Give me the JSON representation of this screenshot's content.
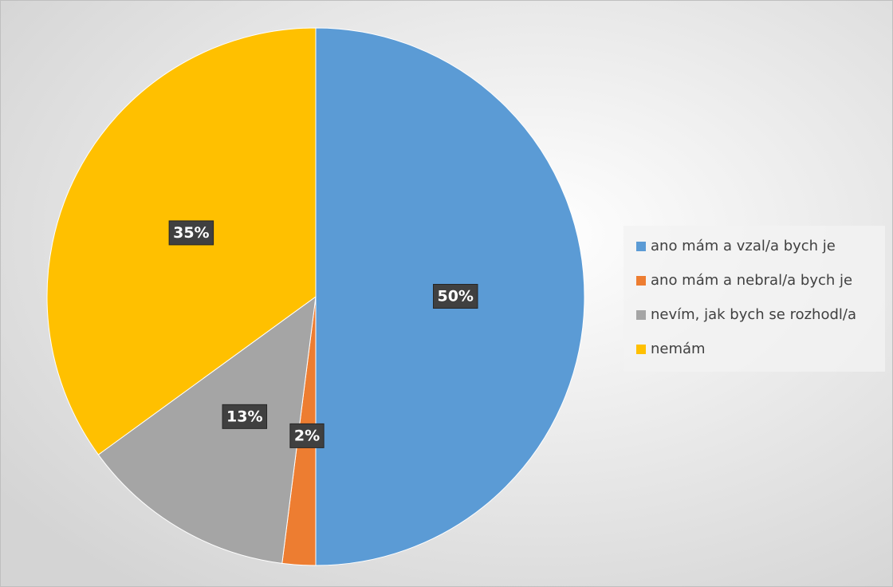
{
  "chart_data": {
    "type": "pie",
    "categories": [
      "ano mám a vzal/a bych je",
      "ano mám a nebral/a bych je",
      "nevím, jak bych se rozhodl/a",
      "nemám"
    ],
    "values": [
      50,
      2,
      13,
      35
    ],
    "value_labels": [
      "50%",
      "2%",
      "13%",
      "35%"
    ],
    "colors": [
      "#5b9bd5",
      "#ed7d31",
      "#a5a5a5",
      "#ffc000"
    ],
    "legend": "right"
  }
}
